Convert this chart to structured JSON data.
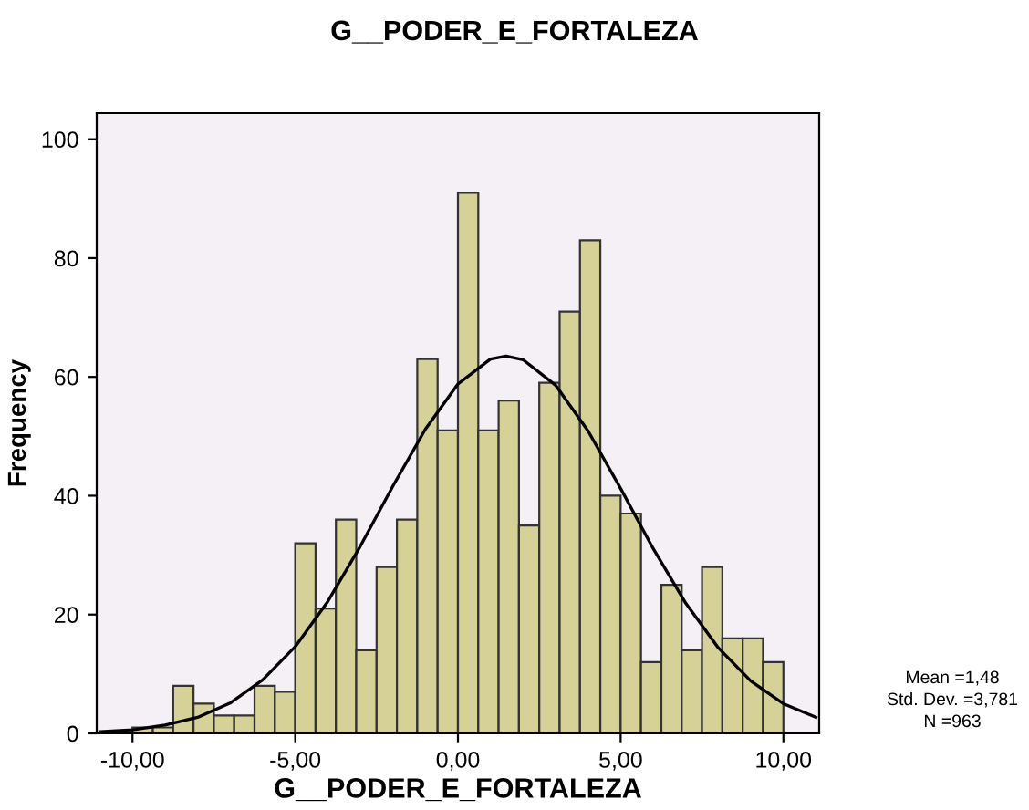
{
  "chart_data": {
    "type": "histogram",
    "title": "G__PODER_E_FORTALEZA",
    "xlabel": "G__PODER_E_FORTALEZA",
    "ylabel": "Frequency",
    "bins": [
      -10,
      -9.375,
      -8.75,
      -8.125,
      -7.5,
      -6.875,
      -6.25,
      -5.625,
      -5,
      -4.375,
      -3.75,
      -3.125,
      -2.5,
      -1.875,
      -1.25,
      -0.625,
      0,
      0.625,
      1.25,
      1.875,
      2.5,
      3.125,
      3.75,
      4.375,
      5,
      5.625,
      6.25,
      6.875,
      7.5,
      8.125,
      8.75,
      9.375,
      10
    ],
    "values": [
      1,
      1,
      8,
      5,
      3,
      3,
      8,
      7,
      32,
      21,
      36,
      14,
      28,
      36,
      63,
      51,
      91,
      51,
      56,
      35,
      59,
      71,
      83,
      40,
      37,
      12,
      25,
      14,
      28,
      16,
      16,
      12
    ],
    "color": "#d5d197",
    "series": [
      {
        "type": "line",
        "color": "#000000",
        "x": [
          -11,
          -10,
          -9,
          -8,
          -7,
          -6,
          -5,
          -4,
          -3,
          -2,
          -1,
          0,
          1,
          1.48,
          2,
          3,
          4,
          5,
          6,
          7,
          8,
          9,
          10,
          11
        ],
        "values": [
          0.3,
          0.6,
          1.4,
          2.7,
          5.1,
          9,
          14.6,
          22.2,
          31.5,
          41.6,
          51.2,
          58.8,
          63,
          63.5,
          62.9,
          58.6,
          50.9,
          41.2,
          31.1,
          21.9,
          14.4,
          8.8,
          5,
          2.7
        ]
      }
    ],
    "xlim": [
      -11.1,
      11.1
    ],
    "ylim": [
      0,
      104.4
    ],
    "xticks": [
      {
        "value": -10,
        "label": "-10,00"
      },
      {
        "value": -5,
        "label": "-5,00"
      },
      {
        "value": 0,
        "label": "0,00"
      },
      {
        "value": 5,
        "label": "5,00"
      },
      {
        "value": 10,
        "label": "10,00"
      }
    ],
    "yticks": [
      0,
      20,
      40,
      60,
      80,
      100
    ],
    "grid": false,
    "legend": false,
    "annotations": [
      "Mean =1,48",
      "Std. Dev. =3,781",
      "N =963"
    ]
  }
}
